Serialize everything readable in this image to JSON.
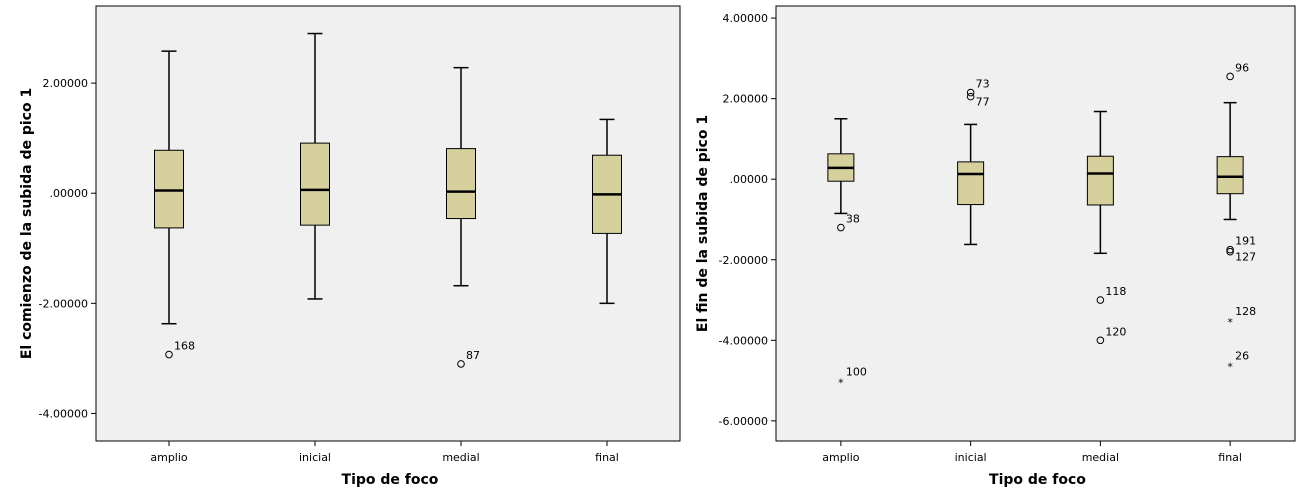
{
  "colors": {
    "plot_bg": "#f0f0f0",
    "box_fill": "#d5d09c",
    "stroke": "#000000"
  },
  "chart_data": [
    {
      "type": "boxplot",
      "xlabel": "Tipo de foco",
      "ylabel": "El comienzo de la subida de pico 1",
      "ylim": [
        -4.5,
        3.4
      ],
      "yticks": [
        2.0,
        0.0,
        -2.0,
        -4.0
      ],
      "ytick_labels": [
        "2.00000",
        ".00000",
        "-2.00000",
        "-4.00000"
      ],
      "categories": [
        "amplio",
        "inicial",
        "medial",
        "final"
      ],
      "boxes": [
        {
          "category": "amplio",
          "whisker_low": -2.37,
          "q1": -0.63,
          "median": 0.05,
          "q3": 0.78,
          "whisker_high": 2.58,
          "outliers": [
            {
              "value": -2.93,
              "label": "168",
              "marker": "circle"
            }
          ]
        },
        {
          "category": "inicial",
          "whisker_low": -1.92,
          "q1": -0.58,
          "median": 0.06,
          "q3": 0.91,
          "whisker_high": 2.9,
          "outliers": []
        },
        {
          "category": "medial",
          "whisker_low": -1.68,
          "q1": -0.46,
          "median": 0.03,
          "q3": 0.81,
          "whisker_high": 2.28,
          "outliers": [
            {
              "value": -3.1,
              "label": "87",
              "marker": "circle"
            }
          ]
        },
        {
          "category": "final",
          "whisker_low": -2.0,
          "q1": -0.73,
          "median": -0.02,
          "q3": 0.69,
          "whisker_high": 1.34,
          "outliers": []
        }
      ]
    },
    {
      "type": "boxplot",
      "xlabel": "Tipo de foco",
      "ylabel": "El fin de la subida de pico 1",
      "ylim": [
        -6.5,
        4.3
      ],
      "yticks": [
        4.0,
        2.0,
        0.0,
        -2.0,
        -4.0,
        -6.0
      ],
      "ytick_labels": [
        "4.00000",
        "2.00000",
        ".00000",
        "-2.00000",
        "-4.00000",
        "-6.00000"
      ],
      "categories": [
        "amplio",
        "inicial",
        "medial",
        "final"
      ],
      "boxes": [
        {
          "category": "amplio",
          "whisker_low": -0.85,
          "q1": -0.05,
          "median": 0.28,
          "q3": 0.63,
          "whisker_high": 1.5,
          "outliers": [
            {
              "value": -1.2,
              "label": "38",
              "marker": "circle"
            },
            {
              "value": -5.0,
              "label": "100",
              "marker": "star"
            }
          ]
        },
        {
          "category": "inicial",
          "whisker_low": -1.62,
          "q1": -0.63,
          "median": 0.13,
          "q3": 0.43,
          "whisker_high": 1.36,
          "outliers": [
            {
              "value": 2.15,
              "label": "73",
              "marker": "circle"
            },
            {
              "value": 2.05,
              "label": "77",
              "marker": "circle"
            }
          ]
        },
        {
          "category": "medial",
          "whisker_low": -1.84,
          "q1": -0.64,
          "median": 0.14,
          "q3": 0.57,
          "whisker_high": 1.68,
          "outliers": [
            {
              "value": -3.0,
              "label": "118",
              "marker": "circle"
            },
            {
              "value": -4.0,
              "label": "120",
              "marker": "circle"
            }
          ]
        },
        {
          "category": "final",
          "whisker_low": -1.0,
          "q1": -0.36,
          "median": 0.06,
          "q3": 0.56,
          "whisker_high": 1.9,
          "outliers": [
            {
              "value": 2.55,
              "label": "96",
              "marker": "circle"
            },
            {
              "value": -1.75,
              "label": "191",
              "marker": "circle"
            },
            {
              "value": -1.8,
              "label": "127",
              "marker": "circle"
            },
            {
              "value": -3.5,
              "label": "128",
              "marker": "star"
            },
            {
              "value": -4.6,
              "label": "26",
              "marker": "star"
            }
          ]
        }
      ]
    }
  ]
}
